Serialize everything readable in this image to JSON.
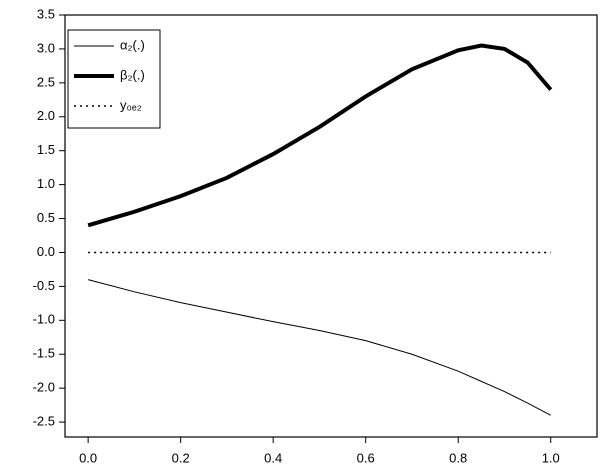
{
  "chart_data": {
    "type": "line",
    "x": [
      0,
      0.1,
      0.2,
      0.3,
      0.4,
      0.5,
      0.6,
      0.7,
      0.8,
      0.85,
      0.9,
      0.95,
      1.0
    ],
    "series": [
      {
        "name": "α₂(.)",
        "color": "#000000",
        "width": 1,
        "style": "solid",
        "values": [
          -0.4,
          -0.58,
          -0.74,
          -0.88,
          -1.02,
          -1.15,
          -1.3,
          -1.5,
          -1.75,
          -1.9,
          -2.05,
          -2.22,
          -2.4
        ]
      },
      {
        "name": "β₂(.)",
        "color": "#000000",
        "width": 4,
        "style": "solid",
        "values": [
          0.4,
          0.6,
          0.83,
          1.1,
          1.45,
          1.85,
          2.3,
          2.7,
          2.98,
          3.05,
          3.0,
          2.8,
          2.4
        ]
      },
      {
        "name": "y₀ₑ₂",
        "color": "#000000",
        "width": 1.5,
        "style": "dotted",
        "values": [
          0,
          0,
          0,
          0,
          0,
          0,
          0,
          0,
          0,
          0,
          0,
          0,
          0
        ]
      }
    ],
    "xlim": [
      -0.05,
      1.1
    ],
    "ylim": [
      -2.72,
      3.5
    ],
    "xticks": [
      {
        "value": 0,
        "label": "0.0"
      },
      0.2,
      0.4,
      0.6,
      0.8,
      {
        "value": 1,
        "label": "1.0"
      }
    ],
    "yticks": [
      -2.5,
      {
        "value": -2,
        "label": "-2.0"
      },
      -1.5,
      {
        "value": -1,
        "label": "-1.0"
      },
      -0.5,
      {
        "value": 0,
        "label": "0.0"
      },
      0.5,
      {
        "value": 1,
        "label": "1.0"
      },
      1.5,
      {
        "value": 2,
        "label": "2.0"
      },
      2.5,
      {
        "value": 3,
        "label": "3.0"
      },
      3.5
    ],
    "legend": "top-left"
  }
}
